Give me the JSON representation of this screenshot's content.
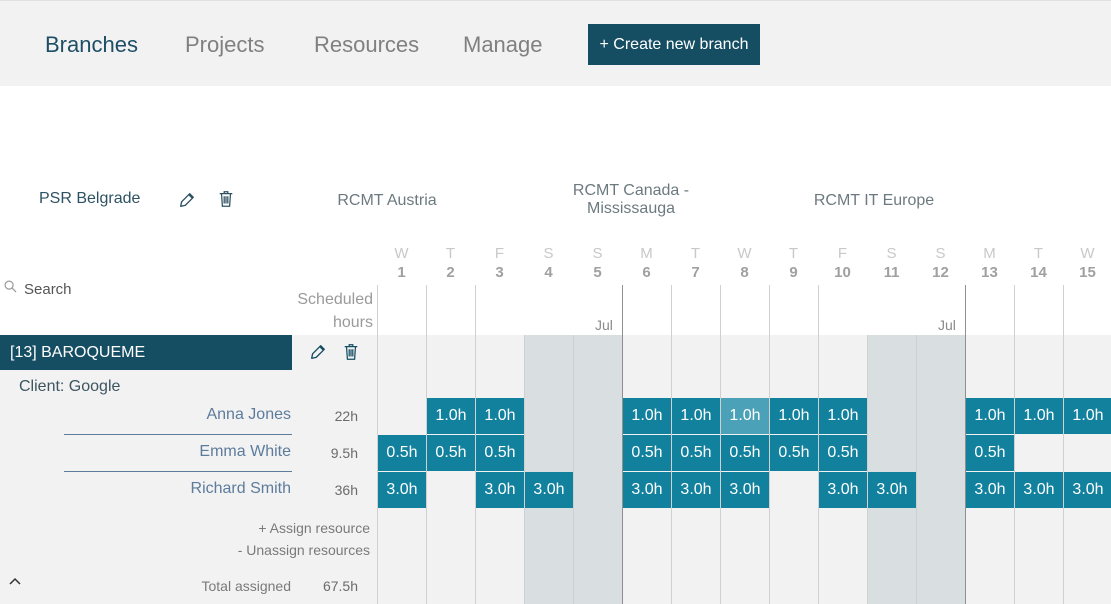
{
  "nav": {
    "tabs": [
      "Branches",
      "Projects",
      "Resources",
      "Manage"
    ],
    "create_button": "+ Create new branch"
  },
  "branches": {
    "selected": "PSR Belgrade",
    "others": [
      "RCMT Austria",
      "RCMT Canada - Mississauga",
      "RCMT IT Europe"
    ]
  },
  "search": {
    "placeholder": "Search"
  },
  "scheduled_label": "Scheduled hours",
  "calendar": {
    "days": [
      {
        "letter": "W",
        "num": "1"
      },
      {
        "letter": "T",
        "num": "2"
      },
      {
        "letter": "F",
        "num": "3"
      },
      {
        "letter": "S",
        "num": "4"
      },
      {
        "letter": "S",
        "num": "5"
      },
      {
        "letter": "M",
        "num": "6"
      },
      {
        "letter": "T",
        "num": "7"
      },
      {
        "letter": "W",
        "num": "8"
      },
      {
        "letter": "T",
        "num": "9"
      },
      {
        "letter": "F",
        "num": "10"
      },
      {
        "letter": "S",
        "num": "11"
      },
      {
        "letter": "S",
        "num": "12"
      },
      {
        "letter": "M",
        "num": "13"
      },
      {
        "letter": "T",
        "num": "14"
      },
      {
        "letter": "W",
        "num": "15"
      }
    ],
    "month_labels": [
      "Jul",
      "Jul"
    ]
  },
  "project": {
    "title": "[13] BAROQUEME",
    "client": "Client: Google",
    "resources": [
      {
        "name": "Anna Jones",
        "hours": "22h",
        "cells": [
          "",
          "1.0h",
          "1.0h",
          "",
          "",
          "1.0h",
          "1.0h",
          "1.0h",
          "1.0h",
          "1.0h",
          "",
          "",
          "1.0h",
          "1.0h",
          "1.0h"
        ]
      },
      {
        "name": "Emma White",
        "hours": "9.5h",
        "cells": [
          "0.5h",
          "0.5h",
          "0.5h",
          "",
          "",
          "0.5h",
          "0.5h",
          "0.5h",
          "0.5h",
          "0.5h",
          "",
          "",
          "0.5h",
          "",
          ""
        ]
      },
      {
        "name": "Richard Smith",
        "hours": "36h",
        "cells": [
          "3.0h",
          "",
          "3.0h",
          "3.0h",
          "",
          "3.0h",
          "3.0h",
          "3.0h",
          "",
          "3.0h",
          "3.0h",
          "",
          "3.0h",
          "3.0h",
          "3.0h"
        ]
      }
    ],
    "assign_label": "+ Assign resource",
    "unassign_label": "- Unassign resources",
    "total_label": "Total assigned",
    "total_value": "67.5h"
  }
}
